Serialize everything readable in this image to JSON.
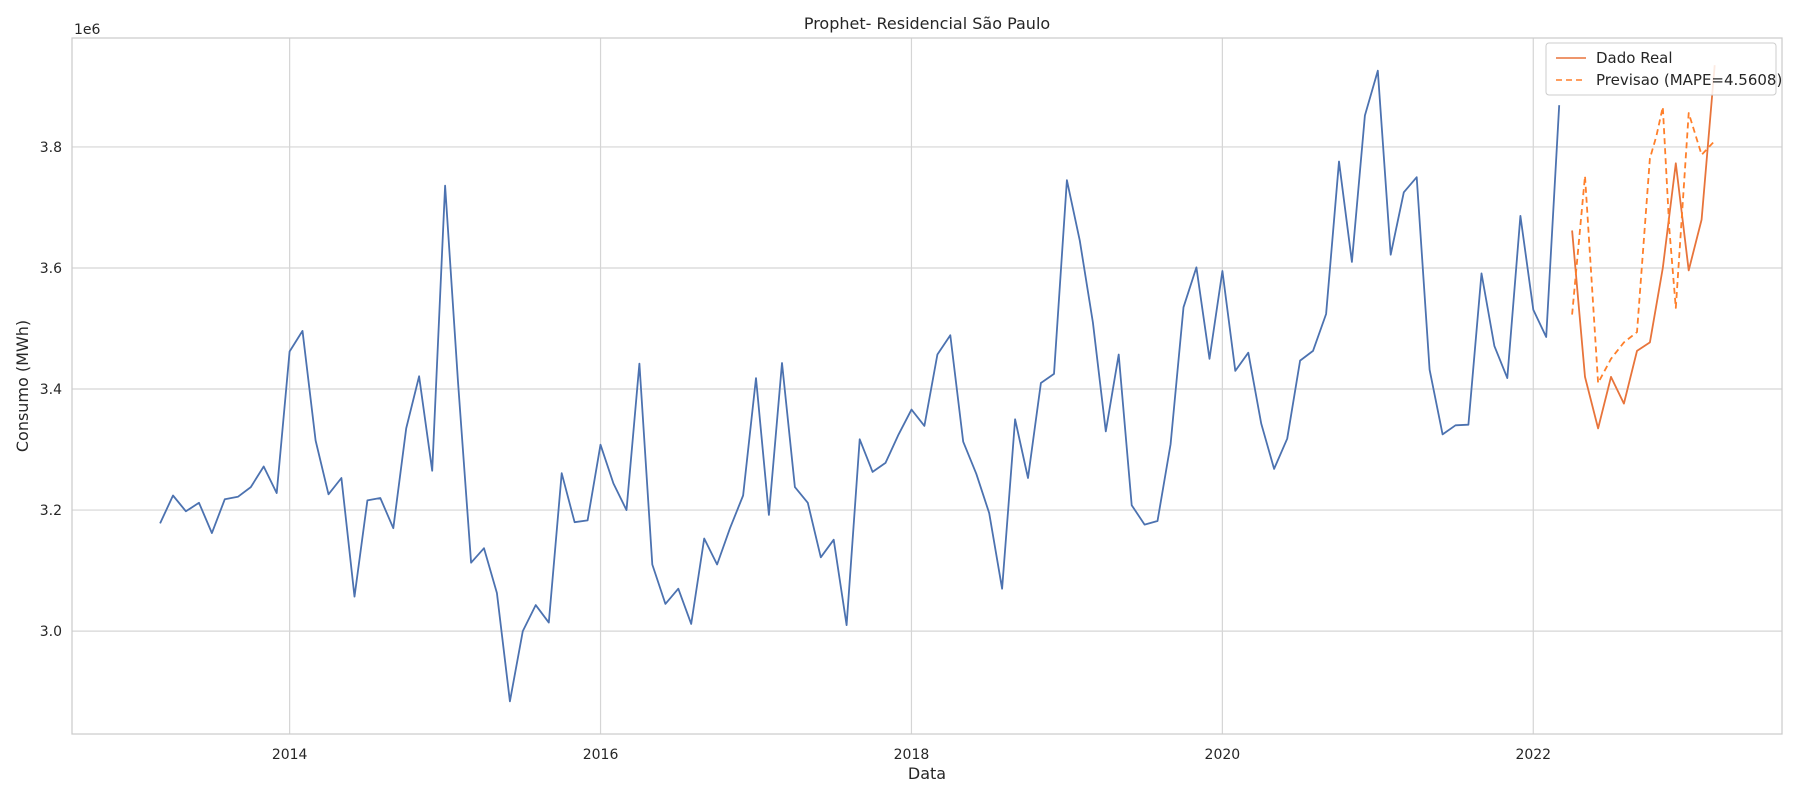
{
  "chart_data": {
    "type": "line",
    "title": "Prophet- Residencial São Paulo",
    "xlabel": "Data",
    "ylabel": "Consumo (MWh)",
    "y_offset_text": "1e6",
    "y_scale_factor": 1000000,
    "grid": true,
    "legend_position": "top-right",
    "xlim": [
      2012.6,
      2023.6
    ],
    "ylim": [
      2.83,
      3.98
    ],
    "x_ticks": [
      {
        "value": 2014,
        "label": "2014"
      },
      {
        "value": 2016,
        "label": "2016"
      },
      {
        "value": 2018,
        "label": "2018"
      },
      {
        "value": 2020,
        "label": "2020"
      },
      {
        "value": 2022,
        "label": "2022"
      }
    ],
    "y_ticks": [
      {
        "value": 3.0,
        "label": "3.0"
      },
      {
        "value": 3.2,
        "label": "3.2"
      },
      {
        "value": 3.4,
        "label": "3.4"
      },
      {
        "value": 3.6,
        "label": "3.6"
      },
      {
        "value": 3.8,
        "label": "3.8"
      }
    ],
    "series": [
      {
        "key": "historico",
        "color": "#4c72b0",
        "dashed": false,
        "x": [
          2013.167,
          2013.25,
          2013.333,
          2013.417,
          2013.5,
          2013.583,
          2013.667,
          2013.75,
          2013.833,
          2013.917,
          2014.0,
          2014.083,
          2014.167,
          2014.25,
          2014.333,
          2014.417,
          2014.5,
          2014.583,
          2014.667,
          2014.75,
          2014.833,
          2014.917,
          2015.0,
          2015.083,
          2015.167,
          2015.25,
          2015.333,
          2015.417,
          2015.5,
          2015.583,
          2015.667,
          2015.75,
          2015.833,
          2015.917,
          2016.0,
          2016.083,
          2016.167,
          2016.25,
          2016.333,
          2016.417,
          2016.5,
          2016.583,
          2016.667,
          2016.75,
          2016.833,
          2016.917,
          2017.0,
          2017.083,
          2017.167,
          2017.25,
          2017.333,
          2017.417,
          2017.5,
          2017.583,
          2017.667,
          2017.75,
          2017.833,
          2017.917,
          2018.0,
          2018.083,
          2018.167,
          2018.25,
          2018.333,
          2018.417,
          2018.5,
          2018.583,
          2018.667,
          2018.75,
          2018.833,
          2018.917,
          2019.0,
          2019.083,
          2019.167,
          2019.25,
          2019.333,
          2019.417,
          2019.5,
          2019.583,
          2019.667,
          2019.75,
          2019.833,
          2019.917,
          2020.0,
          2020.083,
          2020.167,
          2020.25,
          2020.333,
          2020.417,
          2020.5,
          2020.583,
          2020.667,
          2020.75,
          2020.833,
          2020.917,
          2021.0,
          2021.083,
          2021.167,
          2021.25,
          2021.333,
          2021.417,
          2021.5,
          2021.583,
          2021.667,
          2021.75,
          2021.833,
          2021.917,
          2022.0,
          2022.083,
          2022.167
        ],
        "y": [
          3.178,
          3.224,
          3.198,
          3.212,
          3.162,
          3.218,
          3.222,
          3.238,
          3.272,
          3.228,
          3.462,
          3.496,
          3.315,
          3.226,
          3.253,
          3.057,
          3.216,
          3.22,
          3.17,
          3.335,
          3.421,
          3.265,
          3.736,
          3.412,
          3.113,
          3.137,
          3.063,
          2.884,
          3.0,
          3.043,
          3.014,
          3.261,
          3.18,
          3.183,
          3.308,
          3.244,
          3.2,
          3.442,
          3.11,
          3.045,
          3.07,
          3.012,
          3.153,
          3.11,
          3.17,
          3.224,
          3.418,
          3.192,
          3.443,
          3.238,
          3.212,
          3.122,
          3.151,
          3.01,
          3.317,
          3.263,
          3.278,
          3.325,
          3.366,
          3.339,
          3.457,
          3.489,
          3.313,
          3.26,
          3.195,
          3.07,
          3.35,
          3.253,
          3.41,
          3.425,
          3.745,
          3.645,
          3.51,
          3.33,
          3.457,
          3.208,
          3.176,
          3.182,
          3.309,
          3.535,
          3.601,
          3.45,
          3.595,
          3.43,
          3.46,
          3.343,
          3.268,
          3.318,
          3.447,
          3.463,
          3.524,
          3.776,
          3.61,
          3.852,
          3.926,
          3.622,
          3.725,
          3.75,
          3.432,
          3.325,
          3.34,
          3.341,
          3.591,
          3.471,
          3.418,
          3.686,
          3.531,
          3.486,
          3.869
        ]
      },
      {
        "key": "real",
        "name": "Dado Real",
        "color": "#e8743b",
        "dashed": false,
        "x": [
          2022.25,
          2022.333,
          2022.417,
          2022.5,
          2022.583,
          2022.667,
          2022.75,
          2022.833,
          2022.917,
          2023.0,
          2023.083,
          2023.167
        ],
        "y": [
          3.662,
          3.42,
          3.335,
          3.42,
          3.376,
          3.463,
          3.477,
          3.6,
          3.773,
          3.596,
          3.68,
          3.935
        ]
      },
      {
        "key": "previsao",
        "name": "Previsao (MAPE=4.5608)",
        "color": "#ff7f2a",
        "dashed": true,
        "x": [
          2022.25,
          2022.333,
          2022.417,
          2022.5,
          2022.583,
          2022.667,
          2022.75,
          2022.792,
          2022.833,
          2022.875,
          2022.917,
          2023.0,
          2023.083,
          2023.167
        ],
        "y": [
          3.523,
          3.752,
          3.41,
          3.45,
          3.477,
          3.494,
          3.781,
          3.818,
          3.866,
          3.665,
          3.534,
          3.856,
          3.787,
          3.81
        ]
      }
    ]
  }
}
